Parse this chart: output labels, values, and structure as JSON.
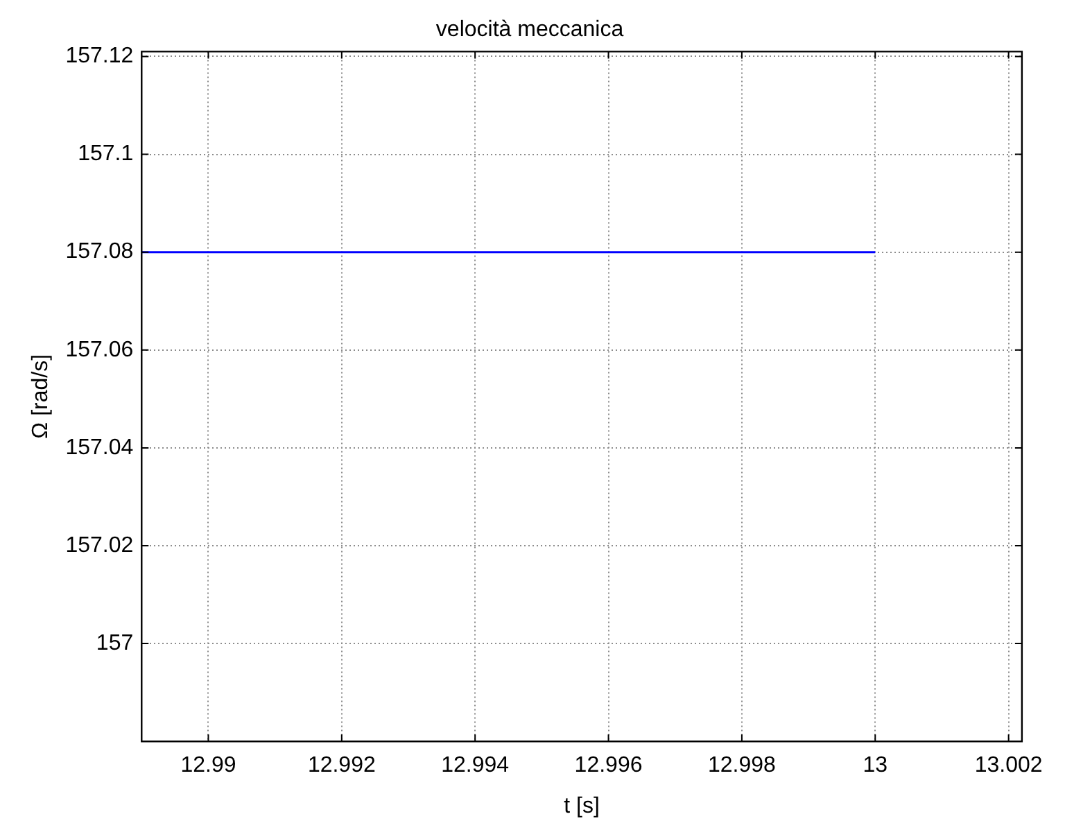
{
  "chart_data": {
    "type": "line",
    "title": "velocità meccanica",
    "xlabel": "t [s]",
    "ylabel": "Ω [rad/s]",
    "x": [
      12.989,
      13.0
    ],
    "series": [
      {
        "color": "#0000ff",
        "values": [
          157.08,
          157.08
        ]
      }
    ],
    "xlim": [
      12.989,
      13.0022
    ],
    "xticks": [
      12.99,
      12.992,
      12.994,
      12.996,
      12.998,
      13,
      13.002
    ],
    "ylim": [
      156.98,
      157.121
    ],
    "yticks": [
      157,
      157.02,
      157.04,
      157.06,
      157.08,
      157.1,
      157.12
    ],
    "grid": true,
    "legend": false,
    "marker": "none",
    "line_style": "solid"
  }
}
